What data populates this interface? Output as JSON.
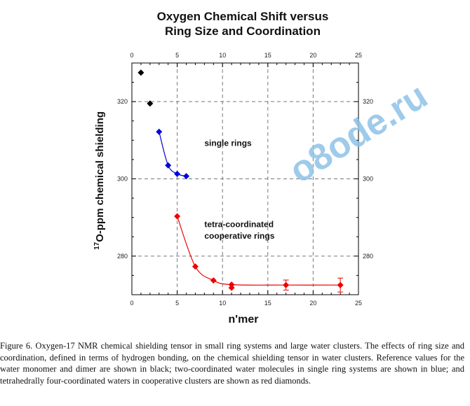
{
  "chart_data": {
    "type": "scatter",
    "title_line1": "Oxygen Chemical Shift versus",
    "title_line2": "Ring Size and Coordination",
    "xlabel": "n'mer",
    "ylabel_sup": "17",
    "ylabel": "O-ppm chemical shielding",
    "xlim": [
      0,
      25
    ],
    "ylim": [
      270,
      330
    ],
    "x_ticks": [
      0,
      5,
      10,
      15,
      20,
      25
    ],
    "y_ticks": [
      280,
      300,
      320
    ],
    "grid": true,
    "grid_style": "dashed",
    "series": [
      {
        "color": "#000000",
        "marker": "diamond",
        "x": [
          1,
          2
        ],
        "y": [
          327.5,
          319.5
        ],
        "fit": false
      },
      {
        "color": "#0000dd",
        "marker": "diamond",
        "x": [
          3,
          4,
          5,
          6
        ],
        "y": [
          312.2,
          303.5,
          301.3,
          300.7
        ],
        "fit": true
      },
      {
        "color": "#ee0000",
        "marker": "diamond",
        "x": [
          5,
          7,
          9,
          11,
          11,
          17,
          23
        ],
        "y": [
          290.3,
          277.3,
          273.7,
          272.6,
          271.8,
          272.5,
          272.5
        ],
        "err": [
          0,
          0,
          0,
          0,
          0,
          1.3,
          1.8
        ],
        "fit": true
      }
    ],
    "annotations": [
      {
        "text": "single rings",
        "x": 8,
        "y": 308.5
      },
      {
        "text": "tetra-coordinated",
        "x": 8,
        "y": 287.5
      },
      {
        "text": "cooperative rings",
        "x": 8,
        "y": 284.5
      }
    ]
  },
  "watermark": "o8ode.ru",
  "caption": "Figure 6.  Oxygen-17 NMR chemical shielding tensor in small ring systems and large water clusters. The effects of ring size and coordination, defined in terms of hydrogen bonding, on the chemical shielding tensor in water clusters. Reference values for the water monomer and dimer are shown in black; two-coordinated water molecules in single ring systems are shown in blue; and tetrahedrally four-coordinated waters in cooperative clusters are shown as red diamonds."
}
